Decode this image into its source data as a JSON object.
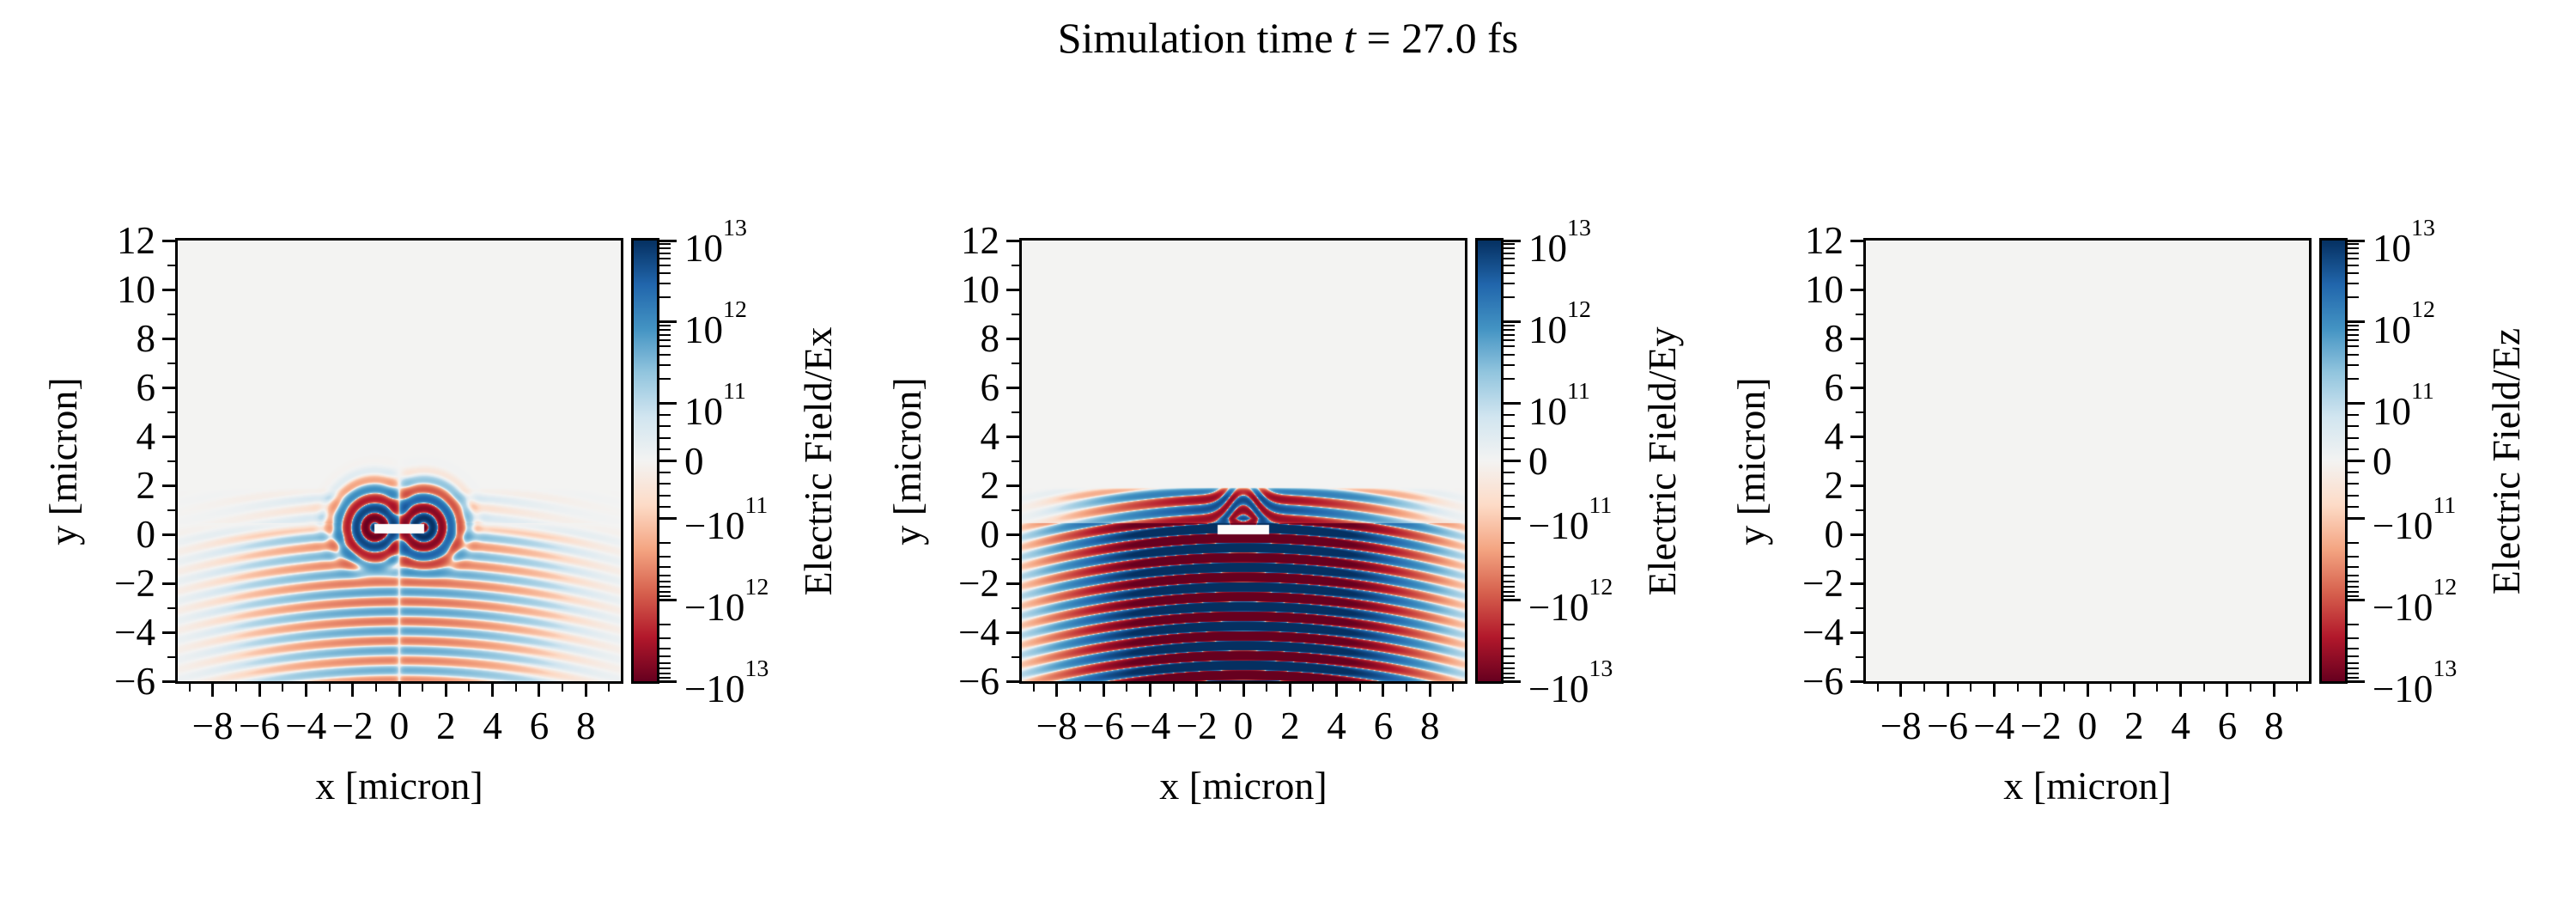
{
  "title": {
    "pre": "Simulation time ",
    "var": "t",
    "post": " = 27.0 fs"
  },
  "colors": {
    "figure_background": "#ffffff",
    "plot_background": "#f3f3f2",
    "spine": "#000000",
    "text": "#000000",
    "target_mask": "#fcfcfc",
    "colormap_name": "RdBu",
    "colormap_stops_low_to_high": [
      [
        103,
        0,
        31
      ],
      [
        178,
        24,
        43
      ],
      [
        214,
        96,
        77
      ],
      [
        244,
        165,
        130
      ],
      [
        253,
        219,
        199
      ],
      [
        243,
        243,
        242
      ],
      [
        209,
        229,
        240
      ],
      [
        146,
        197,
        222
      ],
      [
        67,
        147,
        195
      ],
      [
        33,
        102,
        172
      ],
      [
        5,
        48,
        97
      ]
    ]
  },
  "panels": [
    {
      "name": "Ex",
      "xlabel": "x [micron]",
      "ylabel": "y [micron]",
      "cbar_label_parts": {
        "pre": "Electric Field/",
        "component": "Ex"
      },
      "x_tick_labels": [
        "−8",
        "−6",
        "−4",
        "−2",
        "0",
        "2",
        "4",
        "6",
        "8"
      ],
      "y_tick_labels": [
        "12",
        "10",
        "8",
        "6",
        "4",
        "2",
        "0",
        "−2",
        "−4",
        "−6"
      ],
      "cbar_tick_labels": [
        "10^13",
        "10^12",
        "10^11",
        "0",
        "−10^11",
        "−10^12",
        "−10^13"
      ]
    },
    {
      "name": "Ey",
      "xlabel": "x [micron]",
      "ylabel": "y [micron]",
      "cbar_label_parts": {
        "pre": "Electric Field/",
        "component": "Ey"
      },
      "x_tick_labels": [
        "−8",
        "−6",
        "−4",
        "−2",
        "0",
        "2",
        "4",
        "6",
        "8"
      ],
      "y_tick_labels": [
        "12",
        "10",
        "8",
        "6",
        "4",
        "2",
        "0",
        "−2",
        "−4",
        "−6"
      ],
      "cbar_tick_labels": [
        "10^13",
        "10^12",
        "10^11",
        "0",
        "−10^11",
        "−10^12",
        "−10^13"
      ]
    },
    {
      "name": "Ez",
      "xlabel": "x [micron]",
      "ylabel": "y [micron]",
      "cbar_label_parts": {
        "pre": "Electric Field/",
        "component": "Ez"
      },
      "x_tick_labels": [
        "−8",
        "−6",
        "−4",
        "−2",
        "0",
        "2",
        "4",
        "6",
        "8"
      ],
      "y_tick_labels": [
        "12",
        "10",
        "8",
        "6",
        "4",
        "2",
        "0",
        "−2",
        "−4",
        "−6"
      ],
      "cbar_tick_labels": [
        "10^13",
        "10^12",
        "10^11",
        "0",
        "−10^11",
        "−10^12",
        "−10^13"
      ]
    }
  ],
  "chart_data": [
    {
      "type": "heatmap",
      "title": "",
      "xlabel": "x [micron]",
      "ylabel": "y [micron]",
      "colorbar_label": "Electric Field/Ex",
      "x_range": [
        -9.5,
        9.5
      ],
      "y_range": [
        -6,
        12
      ],
      "x_major_ticks": [
        -8,
        -6,
        -4,
        -2,
        0,
        2,
        4,
        6,
        8
      ],
      "x_minor_ticks": [
        -9,
        -7,
        -5,
        -3,
        -1,
        1,
        3,
        5,
        7,
        9
      ],
      "y_major_ticks": [
        12,
        10,
        8,
        6,
        4,
        2,
        0,
        -2,
        -4,
        -6
      ],
      "y_minor_ticks": [
        11,
        9,
        7,
        5,
        3,
        1,
        -1,
        -3,
        -5
      ],
      "colorbar_tick_values": [
        10000000000000.0,
        1000000000000.0,
        100000000000.0,
        0,
        -100000000000.0,
        -1000000000000.0,
        -10000000000000.0
      ],
      "colorbar_tick_fractions_from_top": [
        0,
        0.185,
        0.37,
        0.5,
        0.63,
        0.815,
        1
      ],
      "norm": {
        "type": "symlog",
        "linthresh": 100000000000.0,
        "vmin": -10000000000000.0,
        "vmax": 10000000000000.0
      },
      "colormap": "RdBu",
      "grid": false,
      "description": "Ex component at t=27.0 fs: faint horizontal standing-wave stripes (wavelength ~0.8 micron) below y~1.9, medium amplitude ~6e11, vertical node along x=0, plus two strong counter-polarized ring/vortex structures (~1e13) centered at the tips of a white target bar near (±1.05, 0.28).",
      "field_model": {
        "kind": "ex",
        "wavelength_um": 0.8,
        "stripe_amp": 600000000000.0,
        "upper_amp": 160000000000.0,
        "envelope_sigma_x": 5.2,
        "top_edge": 1.9,
        "droop": 0.013,
        "node_width": 0.14,
        "phase_offset_um": 0.15,
        "vortex": {
          "centers": [
            [
              -1.05,
              0.28
            ],
            [
              1.05,
              0.28
            ]
          ],
          "sign": [
            1,
            -1
          ],
          "amp": 11000000000000.0,
          "sigma": 1.0
        },
        "target": {
          "x": [
            -1.05,
            1.05
          ],
          "y": [
            0.05,
            0.42
          ]
        }
      }
    },
    {
      "type": "heatmap",
      "title": "",
      "xlabel": "x [micron]",
      "ylabel": "y [micron]",
      "colorbar_label": "Electric Field/Ey",
      "x_range": [
        -9.5,
        9.5
      ],
      "y_range": [
        -6,
        12
      ],
      "x_major_ticks": [
        -8,
        -6,
        -4,
        -2,
        0,
        2,
        4,
        6,
        8
      ],
      "x_minor_ticks": [
        -9,
        -7,
        -5,
        -3,
        -1,
        1,
        3,
        5,
        7,
        9
      ],
      "y_major_ticks": [
        12,
        10,
        8,
        6,
        4,
        2,
        0,
        -2,
        -4,
        -6
      ],
      "y_minor_ticks": [
        11,
        9,
        7,
        5,
        3,
        1,
        -1,
        -3,
        -5
      ],
      "colorbar_tick_values": [
        10000000000000.0,
        1000000000000.0,
        100000000000.0,
        0,
        -100000000000.0,
        -1000000000000.0,
        -10000000000000.0
      ],
      "colorbar_tick_fractions_from_top": [
        0,
        0.185,
        0.37,
        0.5,
        0.63,
        0.815,
        1
      ],
      "norm": {
        "type": "symlog",
        "linthresh": 100000000000.0,
        "vmin": -10000000000000.0,
        "vmax": 10000000000000.0
      },
      "colormap": "RdBu",
      "grid": false,
      "description": "Ey component at t=27.0 fs: saturated standing-wave pattern (~4.5e13, clipped dark red/blue bands, wavelength ~0.8 micron) below y~1.9, Gaussian lateral envelope, slight downward bowing of wavefronts at large |x|, fountain-like arcs diffracting around the white target bar at |x|<1.1, 0<y<0.4.",
      "field_model": {
        "kind": "ey",
        "wavelength_um": 0.8,
        "amp": 45000000000000.0,
        "envelope_sigma_x": 3.9,
        "top_edge": 1.9,
        "droop": 0.013,
        "lift_amp": 1.15,
        "lift_sigma": 0.8,
        "upper_factor": 0.12,
        "phase_offset_um": 0.15,
        "target": {
          "x": [
            -1.1,
            1.1
          ],
          "y": [
            0.0,
            0.4
          ]
        }
      }
    },
    {
      "type": "heatmap",
      "title": "",
      "xlabel": "x [micron]",
      "ylabel": "y [micron]",
      "colorbar_label": "Electric Field/Ez",
      "x_range": [
        -9.5,
        9.5
      ],
      "y_range": [
        -6,
        12
      ],
      "x_major_ticks": [
        -8,
        -6,
        -4,
        -2,
        0,
        2,
        4,
        6,
        8
      ],
      "x_minor_ticks": [
        -9,
        -7,
        -5,
        -3,
        -1,
        1,
        3,
        5,
        7,
        9
      ],
      "y_major_ticks": [
        12,
        10,
        8,
        6,
        4,
        2,
        0,
        -2,
        -4,
        -6
      ],
      "y_minor_ticks": [
        11,
        9,
        7,
        5,
        3,
        1,
        -1,
        -3,
        -5
      ],
      "colorbar_tick_values": [
        10000000000000.0,
        1000000000000.0,
        100000000000.0,
        0,
        -100000000000.0,
        -1000000000000.0,
        -10000000000000.0
      ],
      "colorbar_tick_fractions_from_top": [
        0,
        0.185,
        0.37,
        0.5,
        0.63,
        0.815,
        1
      ],
      "norm": {
        "type": "symlog",
        "linthresh": 100000000000.0,
        "vmin": -10000000000000.0,
        "vmax": 10000000000000.0
      },
      "colormap": "RdBu",
      "grid": false,
      "description": "Ez component at t=27.0 fs: uniformly zero field (flat near-white background).",
      "field_model": {
        "kind": "ez",
        "uniform_value": 0
      }
    }
  ]
}
